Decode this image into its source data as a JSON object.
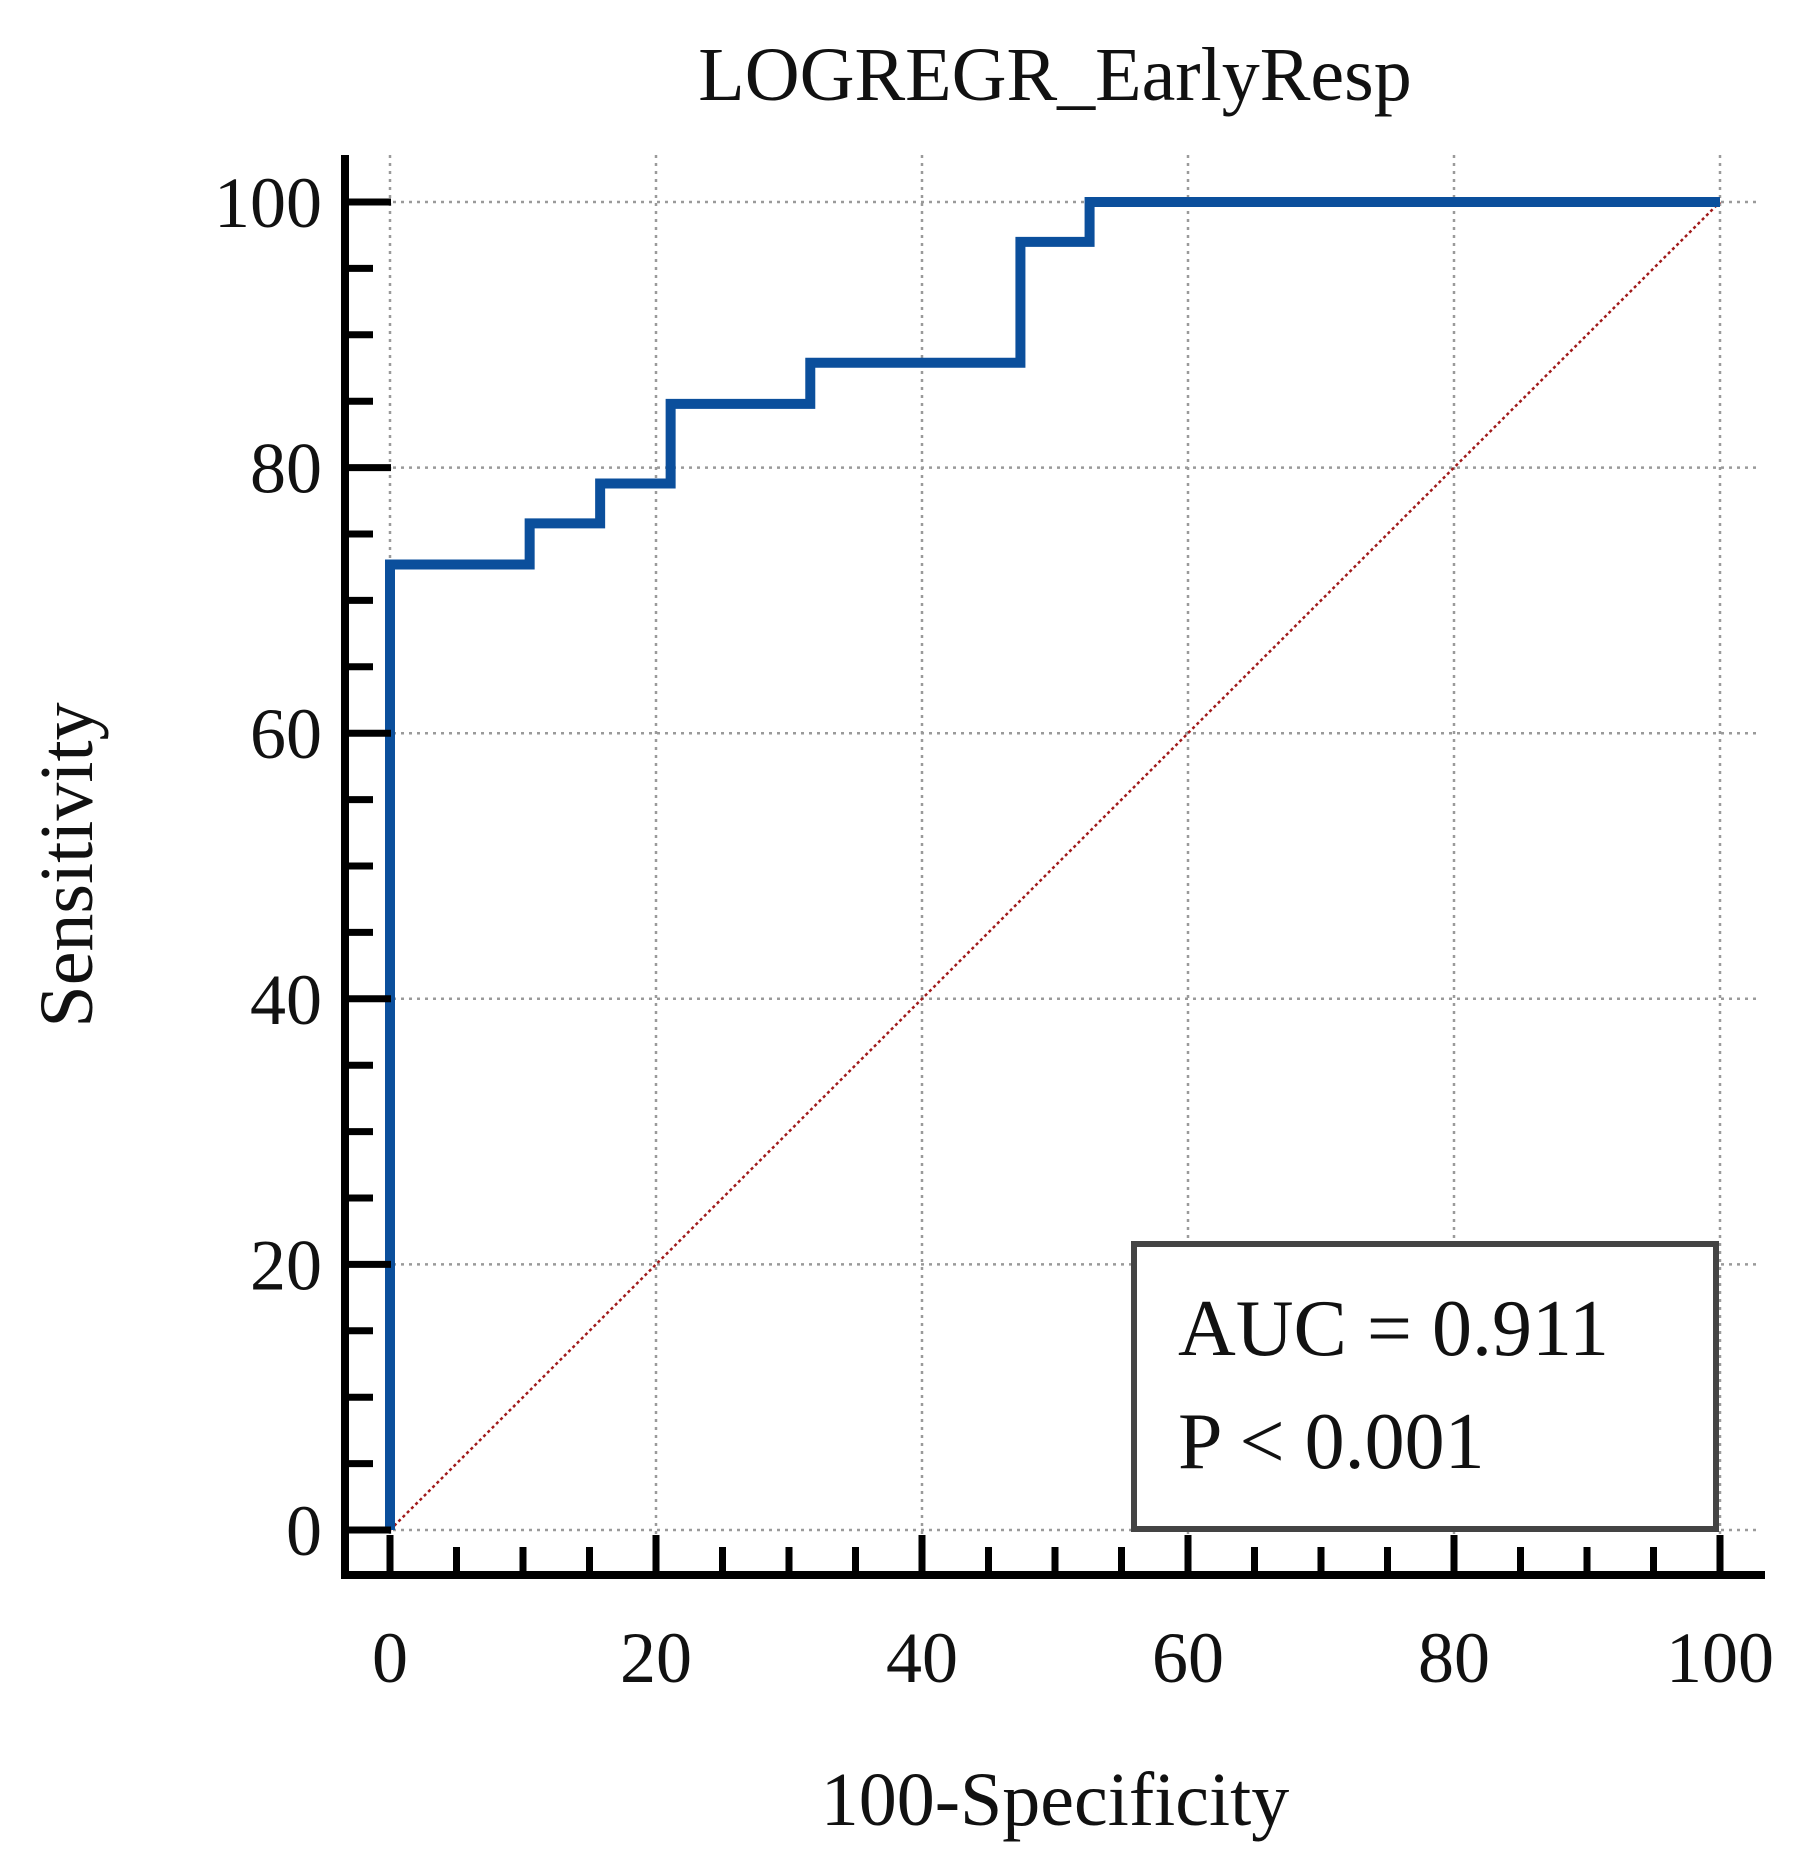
{
  "chart_data": {
    "type": "line",
    "title": "LOGREGR_EarlyResp",
    "xlabel": "100-Specificity",
    "ylabel": "Sensitivity",
    "xlim": [
      0,
      100
    ],
    "ylim": [
      0,
      100
    ],
    "x_ticks": [
      "0",
      "20",
      "40",
      "60",
      "80",
      "100"
    ],
    "y_ticks": [
      "0",
      "20",
      "40",
      "60",
      "80",
      "100"
    ],
    "x_tick_values": [
      0,
      20,
      40,
      60,
      80,
      100
    ],
    "y_tick_values": [
      0,
      20,
      40,
      60,
      80,
      100
    ],
    "minor_tick_step": 5,
    "grid": true,
    "series": [
      {
        "name": "ROC curve",
        "color": "#0b4f9c",
        "style": "step",
        "x": [
          0,
          0,
          10.5,
          10.5,
          15.8,
          15.8,
          21.1,
          21.1,
          31.6,
          31.6,
          47.4,
          47.4,
          52.6,
          52.6,
          100
        ],
        "y": [
          0,
          72.7,
          72.7,
          75.8,
          75.8,
          78.8,
          78.8,
          84.8,
          84.8,
          87.9,
          87.9,
          97.0,
          97.0,
          100,
          100
        ]
      },
      {
        "name": "Reference line",
        "color": "#a01a1a",
        "style": "dotted",
        "x": [
          0,
          100
        ],
        "y": [
          0,
          100
        ]
      }
    ],
    "annotation": {
      "auc": "AUC = 0.911",
      "p": "P < 0.001",
      "placement": "bottom-right"
    }
  }
}
